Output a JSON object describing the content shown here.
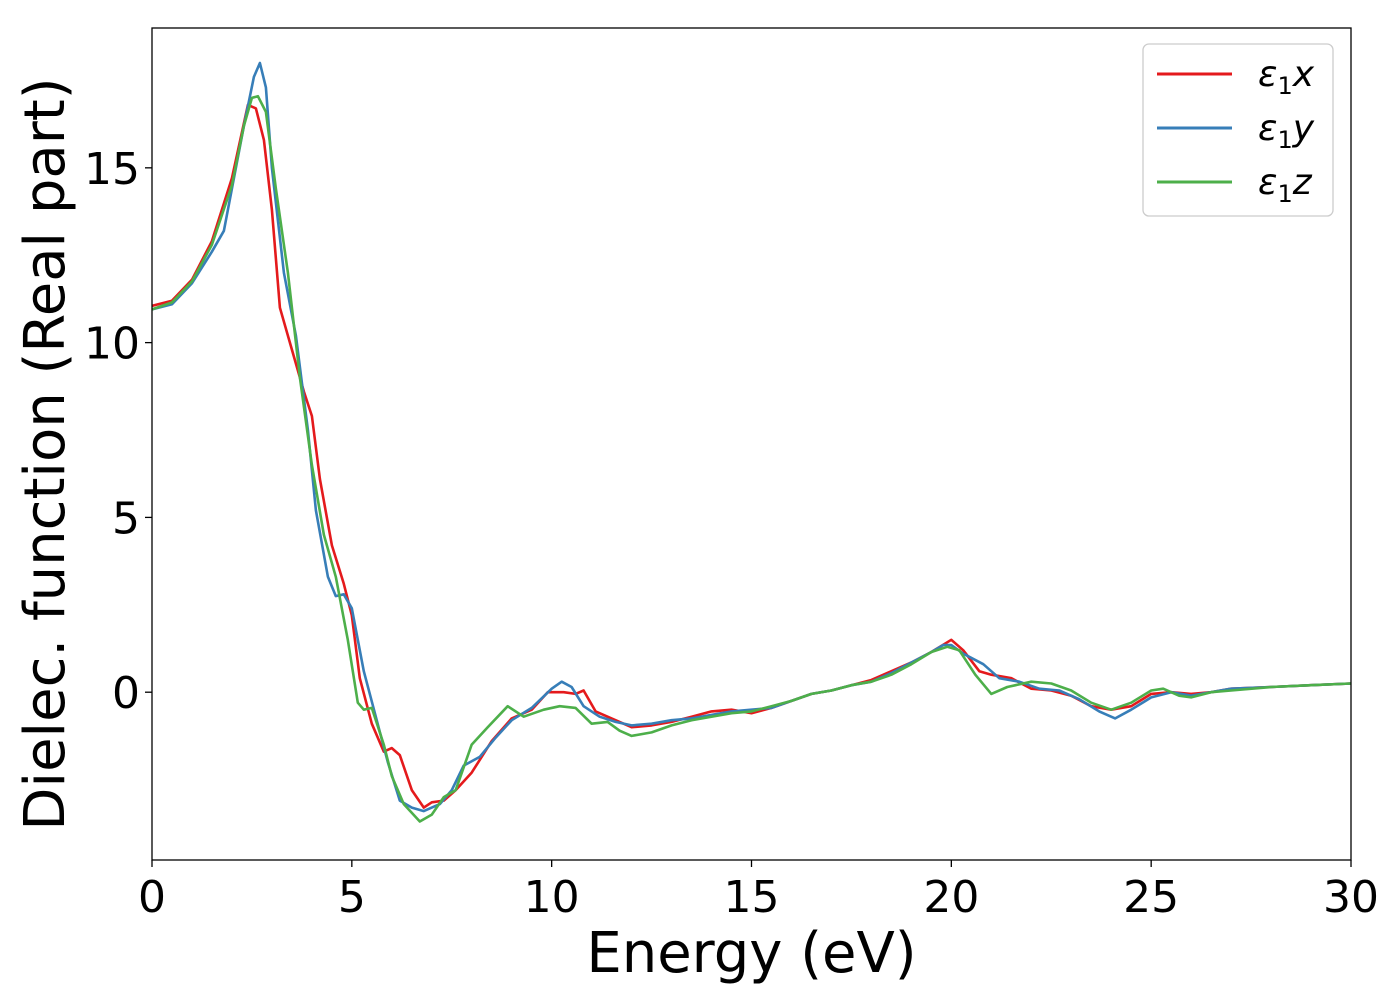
{
  "chart_data": {
    "type": "line",
    "title": "",
    "xlabel": "Energy (eV)",
    "ylabel": "Dielec. function (Real part)",
    "xlim": [
      0,
      30
    ],
    "ylim": [
      -4.8,
      19
    ],
    "xticks": [
      0,
      5,
      10,
      15,
      20,
      25,
      30
    ],
    "yticks": [
      0,
      5,
      10,
      15
    ],
    "grid": false,
    "legend_position": "top-right",
    "series": [
      {
        "name": "ε₁x",
        "legend": {
          "base": "ε",
          "sub": "1",
          "var": "x"
        },
        "color": "#e41a1c",
        "points": [
          [
            0,
            11.05
          ],
          [
            0.5,
            11.2
          ],
          [
            1,
            11.8
          ],
          [
            1.5,
            12.9
          ],
          [
            2,
            14.7
          ],
          [
            2.4,
            16.8
          ],
          [
            2.6,
            16.7
          ],
          [
            2.8,
            15.8
          ],
          [
            3,
            13.8
          ],
          [
            3.2,
            11.0
          ],
          [
            3.5,
            9.8
          ],
          [
            3.8,
            8.6
          ],
          [
            4,
            7.9
          ],
          [
            4.2,
            6.1
          ],
          [
            4.5,
            4.2
          ],
          [
            4.8,
            3.1
          ],
          [
            5,
            2.2
          ],
          [
            5.2,
            0.4
          ],
          [
            5.5,
            -0.9
          ],
          [
            5.8,
            -1.7
          ],
          [
            6,
            -1.6
          ],
          [
            6.2,
            -1.8
          ],
          [
            6.5,
            -2.8
          ],
          [
            6.8,
            -3.3
          ],
          [
            7,
            -3.15
          ],
          [
            7.3,
            -3.1
          ],
          [
            7.6,
            -2.8
          ],
          [
            8,
            -2.3
          ],
          [
            8.5,
            -1.4
          ],
          [
            9,
            -0.75
          ],
          [
            9.5,
            -0.5
          ],
          [
            9.9,
            0.0
          ],
          [
            10.3,
            0.0
          ],
          [
            10.6,
            -0.05
          ],
          [
            10.8,
            0.05
          ],
          [
            11.1,
            -0.55
          ],
          [
            11.5,
            -0.75
          ],
          [
            12,
            -1.0
          ],
          [
            12.5,
            -0.95
          ],
          [
            13,
            -0.85
          ],
          [
            13.5,
            -0.7
          ],
          [
            14,
            -0.55
          ],
          [
            14.5,
            -0.5
          ],
          [
            15,
            -0.6
          ],
          [
            15.5,
            -0.45
          ],
          [
            16,
            -0.25
          ],
          [
            16.5,
            -0.05
          ],
          [
            17,
            0.05
          ],
          [
            17.5,
            0.2
          ],
          [
            18,
            0.35
          ],
          [
            18.5,
            0.6
          ],
          [
            19,
            0.85
          ],
          [
            19.5,
            1.15
          ],
          [
            20,
            1.5
          ],
          [
            20.3,
            1.2
          ],
          [
            20.7,
            0.6
          ],
          [
            21,
            0.5
          ],
          [
            21.5,
            0.4
          ],
          [
            22,
            0.1
          ],
          [
            22.5,
            0.05
          ],
          [
            23,
            -0.1
          ],
          [
            23.5,
            -0.4
          ],
          [
            24,
            -0.5
          ],
          [
            24.5,
            -0.4
          ],
          [
            25,
            -0.05
          ],
          [
            25.5,
            0.0
          ],
          [
            26,
            -0.05
          ],
          [
            26.5,
            0.0
          ],
          [
            27,
            0.1
          ],
          [
            28,
            0.15
          ],
          [
            29,
            0.2
          ],
          [
            30,
            0.25
          ]
        ]
      },
      {
        "name": "ε₁y",
        "legend": {
          "base": "ε",
          "sub": "1",
          "var": "y"
        },
        "color": "#377eb8",
        "points": [
          [
            0,
            10.95
          ],
          [
            0.5,
            11.1
          ],
          [
            1,
            11.7
          ],
          [
            1.5,
            12.6
          ],
          [
            1.8,
            13.2
          ],
          [
            2,
            14.4
          ],
          [
            2.3,
            16.2
          ],
          [
            2.55,
            17.6
          ],
          [
            2.7,
            18.0
          ],
          [
            2.85,
            17.3
          ],
          [
            3,
            15.0
          ],
          [
            3.3,
            12.0
          ],
          [
            3.6,
            10.2
          ],
          [
            3.9,
            7.5
          ],
          [
            4.1,
            5.2
          ],
          [
            4.4,
            3.3
          ],
          [
            4.6,
            2.75
          ],
          [
            4.8,
            2.8
          ],
          [
            5,
            2.4
          ],
          [
            5.3,
            0.6
          ],
          [
            5.6,
            -0.7
          ],
          [
            5.9,
            -2.0
          ],
          [
            6.2,
            -3.1
          ],
          [
            6.5,
            -3.3
          ],
          [
            6.8,
            -3.4
          ],
          [
            7.2,
            -3.2
          ],
          [
            7.5,
            -2.8
          ],
          [
            7.8,
            -2.1
          ],
          [
            8.2,
            -1.85
          ],
          [
            8.6,
            -1.3
          ],
          [
            9,
            -0.8
          ],
          [
            9.5,
            -0.45
          ],
          [
            10,
            0.1
          ],
          [
            10.25,
            0.3
          ],
          [
            10.5,
            0.15
          ],
          [
            10.8,
            -0.4
          ],
          [
            11.2,
            -0.7
          ],
          [
            11.6,
            -0.85
          ],
          [
            12,
            -0.95
          ],
          [
            12.5,
            -0.9
          ],
          [
            13,
            -0.8
          ],
          [
            13.5,
            -0.75
          ],
          [
            14,
            -0.65
          ],
          [
            14.5,
            -0.55
          ],
          [
            15,
            -0.5
          ],
          [
            15.5,
            -0.45
          ],
          [
            16,
            -0.25
          ],
          [
            16.5,
            -0.05
          ],
          [
            17,
            0.05
          ],
          [
            17.5,
            0.2
          ],
          [
            18,
            0.3
          ],
          [
            18.5,
            0.55
          ],
          [
            19,
            0.85
          ],
          [
            19.5,
            1.15
          ],
          [
            19.8,
            1.35
          ],
          [
            20,
            1.35
          ],
          [
            20.3,
            1.1
          ],
          [
            20.8,
            0.8
          ],
          [
            21.2,
            0.4
          ],
          [
            21.7,
            0.3
          ],
          [
            22.2,
            0.1
          ],
          [
            22.7,
            0.05
          ],
          [
            23.2,
            -0.2
          ],
          [
            23.7,
            -0.55
          ],
          [
            24.1,
            -0.75
          ],
          [
            24.5,
            -0.5
          ],
          [
            25,
            -0.15
          ],
          [
            25.5,
            0.0
          ],
          [
            26,
            -0.1
          ],
          [
            26.5,
            0.0
          ],
          [
            27,
            0.1
          ],
          [
            28,
            0.15
          ],
          [
            29,
            0.2
          ],
          [
            30,
            0.25
          ]
        ]
      },
      {
        "name": "ε₁z",
        "legend": {
          "base": "ε",
          "sub": "1",
          "var": "z"
        },
        "color": "#4daf4a",
        "points": [
          [
            0,
            10.95
          ],
          [
            0.5,
            11.15
          ],
          [
            1,
            11.75
          ],
          [
            1.5,
            12.8
          ],
          [
            2,
            14.5
          ],
          [
            2.3,
            16.2
          ],
          [
            2.5,
            17.0
          ],
          [
            2.65,
            17.05
          ],
          [
            2.85,
            16.6
          ],
          [
            3.1,
            14.4
          ],
          [
            3.4,
            12.0
          ],
          [
            3.7,
            9.0
          ],
          [
            4,
            6.5
          ],
          [
            4.3,
            4.5
          ],
          [
            4.6,
            3.3
          ],
          [
            4.9,
            1.5
          ],
          [
            5.15,
            -0.3
          ],
          [
            5.3,
            -0.5
          ],
          [
            5.5,
            -0.45
          ],
          [
            5.8,
            -1.5
          ],
          [
            6,
            -2.4
          ],
          [
            6.3,
            -3.2
          ],
          [
            6.7,
            -3.7
          ],
          [
            7,
            -3.5
          ],
          [
            7.3,
            -3.0
          ],
          [
            7.6,
            -2.8
          ],
          [
            8,
            -1.5
          ],
          [
            8.4,
            -1.0
          ],
          [
            8.9,
            -0.4
          ],
          [
            9.3,
            -0.7
          ],
          [
            9.8,
            -0.5
          ],
          [
            10.2,
            -0.4
          ],
          [
            10.6,
            -0.45
          ],
          [
            11,
            -0.9
          ],
          [
            11.4,
            -0.85
          ],
          [
            11.7,
            -1.1
          ],
          [
            12,
            -1.25
          ],
          [
            12.5,
            -1.15
          ],
          [
            13,
            -0.95
          ],
          [
            13.5,
            -0.8
          ],
          [
            14,
            -0.7
          ],
          [
            14.5,
            -0.6
          ],
          [
            15,
            -0.55
          ],
          [
            15.5,
            -0.4
          ],
          [
            16,
            -0.25
          ],
          [
            16.5,
            -0.05
          ],
          [
            17,
            0.05
          ],
          [
            17.5,
            0.2
          ],
          [
            18,
            0.3
          ],
          [
            18.5,
            0.5
          ],
          [
            19,
            0.8
          ],
          [
            19.5,
            1.15
          ],
          [
            19.9,
            1.3
          ],
          [
            20.2,
            1.2
          ],
          [
            20.6,
            0.5
          ],
          [
            21,
            -0.05
          ],
          [
            21.4,
            0.15
          ],
          [
            22,
            0.3
          ],
          [
            22.5,
            0.25
          ],
          [
            23,
            0.05
          ],
          [
            23.5,
            -0.3
          ],
          [
            24,
            -0.5
          ],
          [
            24.5,
            -0.3
          ],
          [
            25,
            0.05
          ],
          [
            25.3,
            0.1
          ],
          [
            25.7,
            -0.1
          ],
          [
            26,
            -0.15
          ],
          [
            26.5,
            0.0
          ],
          [
            27,
            0.05
          ],
          [
            28,
            0.15
          ],
          [
            29,
            0.2
          ],
          [
            30,
            0.25
          ]
        ]
      }
    ]
  }
}
